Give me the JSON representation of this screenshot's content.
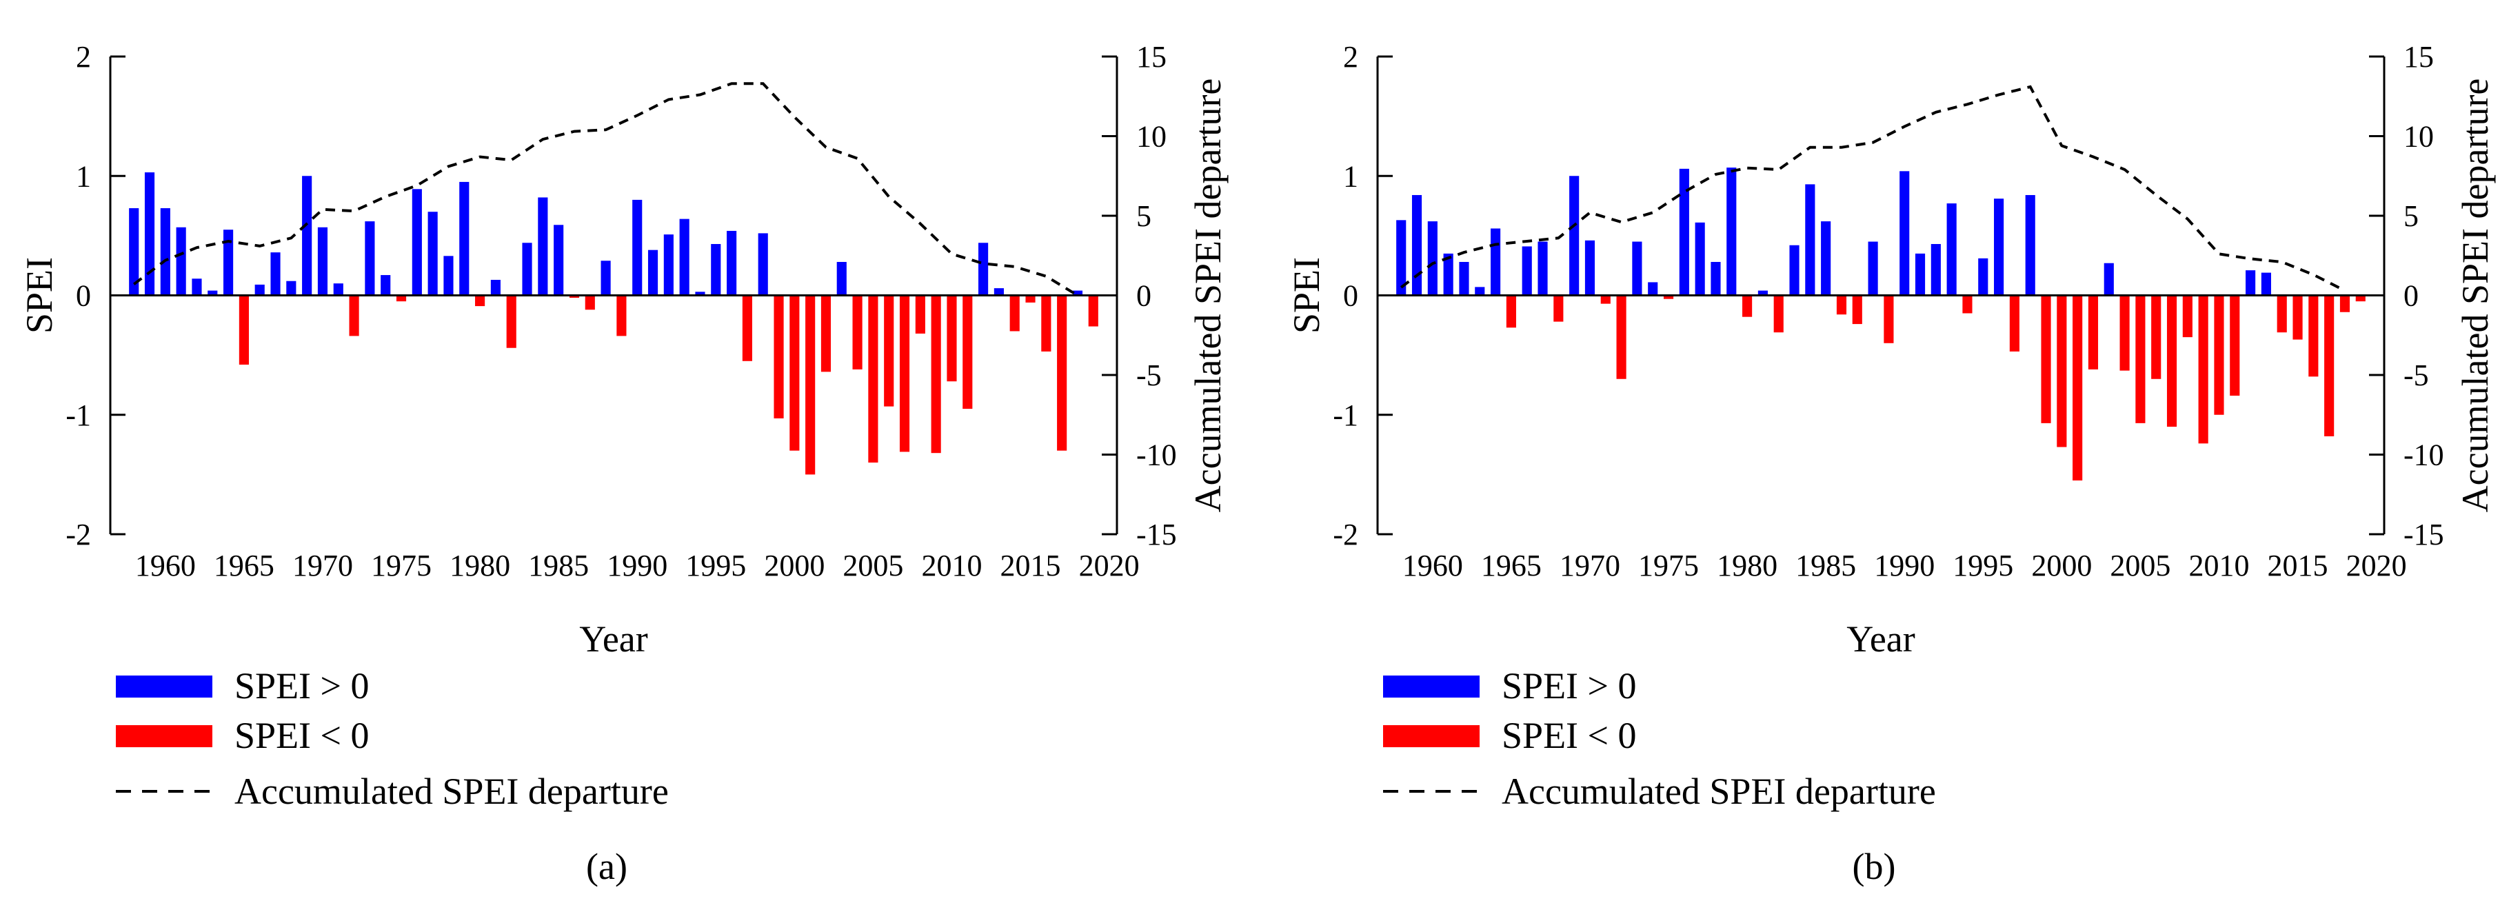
{
  "figure": {
    "captions": [
      "(a)",
      "(b)"
    ],
    "legend": {
      "pos_label": "SPEI > 0",
      "neg_label": "SPEI < 0",
      "line_label": "Accumulated SPEI departure"
    }
  },
  "chart_data": [
    {
      "type": "bar",
      "caption": "(a)",
      "xlabel": "Year",
      "ylabel": "SPEI",
      "y2label": "Accumulated SPEI departure",
      "xlim": [
        1956.5,
        2020.5
      ],
      "ylim": [
        -2,
        2
      ],
      "y2lim": [
        -15,
        15
      ],
      "xticks": [
        1960,
        1965,
        1970,
        1975,
        1980,
        1985,
        1990,
        1995,
        2000,
        2005,
        2010,
        2015,
        2020
      ],
      "yticks": [
        -2,
        -1,
        0,
        1,
        2
      ],
      "y2ticks": [
        -15,
        -10,
        -5,
        0,
        5,
        10,
        15
      ],
      "positive_color": "#0000FF",
      "negative_color": "#FF0000",
      "line_color": "#000000",
      "series": [
        {
          "name": "SPEI",
          "x": [
            1958,
            1959,
            1960,
            1961,
            1962,
            1963,
            1964,
            1965,
            1966,
            1967,
            1968,
            1969,
            1970,
            1971,
            1972,
            1973,
            1974,
            1975,
            1976,
            1977,
            1978,
            1979,
            1980,
            1981,
            1982,
            1983,
            1984,
            1985,
            1986,
            1987,
            1988,
            1989,
            1990,
            1991,
            1992,
            1993,
            1994,
            1995,
            1996,
            1997,
            1998,
            1999,
            2000,
            2001,
            2002,
            2003,
            2004,
            2005,
            2006,
            2007,
            2008,
            2009,
            2010,
            2011,
            2012,
            2013,
            2014,
            2015,
            2016,
            2017,
            2018,
            2019
          ],
          "values": [
            0.73,
            1.03,
            0.73,
            0.57,
            0.14,
            0.04,
            0.55,
            -0.58,
            0.09,
            0.36,
            0.12,
            1.0,
            0.57,
            0.1,
            -0.34,
            0.62,
            0.17,
            -0.05,
            0.89,
            0.7,
            0.33,
            0.95,
            -0.09,
            0.13,
            -0.44,
            0.44,
            0.82,
            0.59,
            -0.02,
            -0.12,
            0.29,
            -0.34,
            0.8,
            0.38,
            0.51,
            0.64,
            0.03,
            0.43,
            0.54,
            -0.55,
            0.52,
            -1.03,
            -1.3,
            -1.5,
            -0.64,
            0.28,
            -0.62,
            -1.4,
            -0.93,
            -1.31,
            -0.32,
            -1.32,
            -0.72,
            -0.95,
            0.44,
            0.06,
            -0.3,
            -0.06,
            -0.47,
            -1.3,
            0.04,
            -0.26
          ]
        },
        {
          "name": "Accumulated SPEI departure",
          "axis": "right",
          "x": [
            1958,
            1960,
            1962,
            1964,
            1966,
            1968,
            1970,
            1972,
            1974,
            1976,
            1978,
            1980,
            1982,
            1984,
            1986,
            1988,
            1990,
            1992,
            1994,
            1996,
            1998,
            2000,
            2002,
            2004,
            2006,
            2008,
            2010,
            2012,
            2014,
            2016,
            2018
          ],
          "values": [
            0.7,
            2.2,
            3.0,
            3.4,
            3.1,
            3.6,
            5.4,
            5.3,
            6.2,
            6.9,
            8.1,
            8.7,
            8.5,
            9.8,
            10.3,
            10.4,
            11.3,
            12.3,
            12.6,
            13.3,
            13.3,
            11.2,
            9.3,
            8.6,
            6.2,
            4.5,
            2.6,
            2.0,
            1.8,
            1.2,
            0.0
          ]
        }
      ]
    },
    {
      "type": "bar",
      "caption": "(b)",
      "xlabel": "Year",
      "ylabel": "SPEI",
      "y2label": "Accumulated SPEI departure",
      "xlim": [
        1956.5,
        2020.5
      ],
      "ylim": [
        -2,
        2
      ],
      "y2lim": [
        -15,
        15
      ],
      "xticks": [
        1960,
        1965,
        1970,
        1975,
        1980,
        1985,
        1990,
        1995,
        2000,
        2005,
        2010,
        2015,
        2020
      ],
      "yticks": [
        -2,
        -1,
        0,
        1,
        2
      ],
      "y2ticks": [
        -15,
        -10,
        -5,
        0,
        5,
        10,
        15
      ],
      "positive_color": "#0000FF",
      "negative_color": "#FF0000",
      "line_color": "#000000",
      "series": [
        {
          "name": "SPEI",
          "x": [
            1958,
            1959,
            1960,
            1961,
            1962,
            1963,
            1964,
            1965,
            1966,
            1967,
            1968,
            1969,
            1970,
            1971,
            1972,
            1973,
            1974,
            1975,
            1976,
            1977,
            1978,
            1979,
            1980,
            1981,
            1982,
            1983,
            1984,
            1985,
            1986,
            1987,
            1988,
            1989,
            1990,
            1991,
            1992,
            1993,
            1994,
            1995,
            1996,
            1997,
            1998,
            1999,
            2000,
            2001,
            2002,
            2003,
            2004,
            2005,
            2006,
            2007,
            2008,
            2009,
            2010,
            2011,
            2012,
            2013,
            2014,
            2015,
            2016,
            2017,
            2018,
            2019
          ],
          "values": [
            0.63,
            0.84,
            0.62,
            0.35,
            0.28,
            0.07,
            0.56,
            -0.27,
            0.41,
            0.45,
            -0.22,
            1.0,
            0.46,
            -0.07,
            -0.7,
            0.45,
            0.11,
            -0.03,
            1.06,
            0.61,
            0.28,
            1.07,
            -0.18,
            0.04,
            -0.31,
            0.42,
            0.93,
            0.62,
            -0.16,
            -0.24,
            0.45,
            -0.4,
            1.04,
            0.35,
            0.43,
            0.77,
            -0.15,
            0.31,
            0.81,
            -0.47,
            0.84,
            -1.07,
            -1.27,
            -1.55,
            -0.62,
            0.27,
            -0.63,
            -1.07,
            -0.7,
            -1.1,
            -0.35,
            -1.24,
            -1.0,
            -0.84,
            0.21,
            0.19,
            -0.31,
            -0.37,
            -0.68,
            -1.18,
            -0.14,
            -0.05
          ]
        },
        {
          "name": "Accumulated SPEI departure",
          "axis": "right",
          "x": [
            1958,
            1960,
            1962,
            1964,
            1966,
            1968,
            1970,
            1972,
            1974,
            1976,
            1978,
            1980,
            1982,
            1984,
            1986,
            1988,
            1990,
            1992,
            1994,
            1996,
            1998,
            2000,
            2002,
            2004,
            2006,
            2008,
            2010,
            2012,
            2014,
            2016,
            2018
          ],
          "values": [
            0.5,
            2.0,
            2.7,
            3.2,
            3.4,
            3.6,
            5.2,
            4.6,
            5.2,
            6.5,
            7.6,
            8.0,
            7.9,
            9.3,
            9.3,
            9.6,
            10.6,
            11.5,
            12.0,
            12.6,
            13.1,
            9.4,
            8.7,
            7.9,
            6.3,
            4.8,
            2.6,
            2.3,
            2.1,
            1.3,
            0.3
          ]
        }
      ]
    }
  ]
}
